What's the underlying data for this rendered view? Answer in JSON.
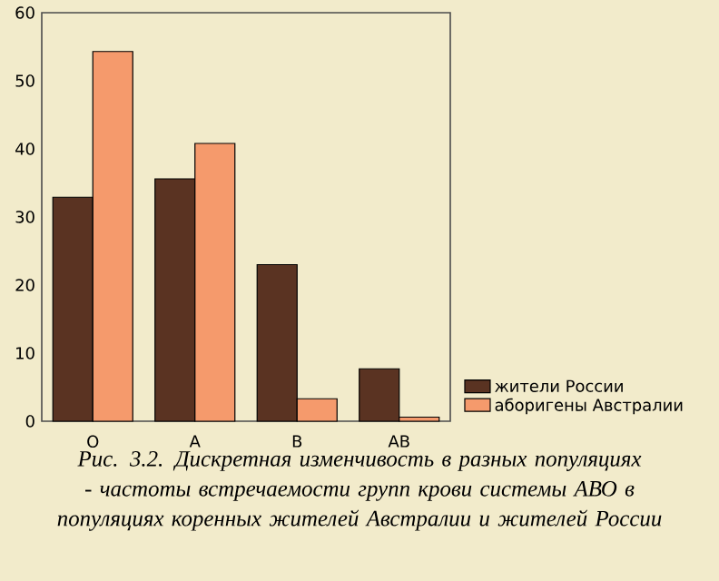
{
  "chart_data": {
    "type": "bar",
    "categories": [
      "O",
      "A",
      "B",
      "AB"
    ],
    "series": [
      {
        "name": "жители России",
        "color": "#5a3322",
        "values": [
          32.9,
          35.6,
          23.0,
          7.7
        ]
      },
      {
        "name": "аборигены Австралии",
        "color": "#f59a6c",
        "values": [
          54.3,
          40.8,
          3.3,
          0.6
        ]
      }
    ],
    "ylim": [
      0,
      60
    ],
    "yticks": [
      0,
      10,
      20,
      30,
      40,
      50,
      60
    ],
    "grid": false,
    "legend": "bottom right",
    "annotations": [
      "Рис. 3.2. Дискретная изменчивость в разных популяциях - частоты встречаемости групп крови системы АВО в популяциях коренных жителей Австралии и жителей России"
    ]
  }
}
